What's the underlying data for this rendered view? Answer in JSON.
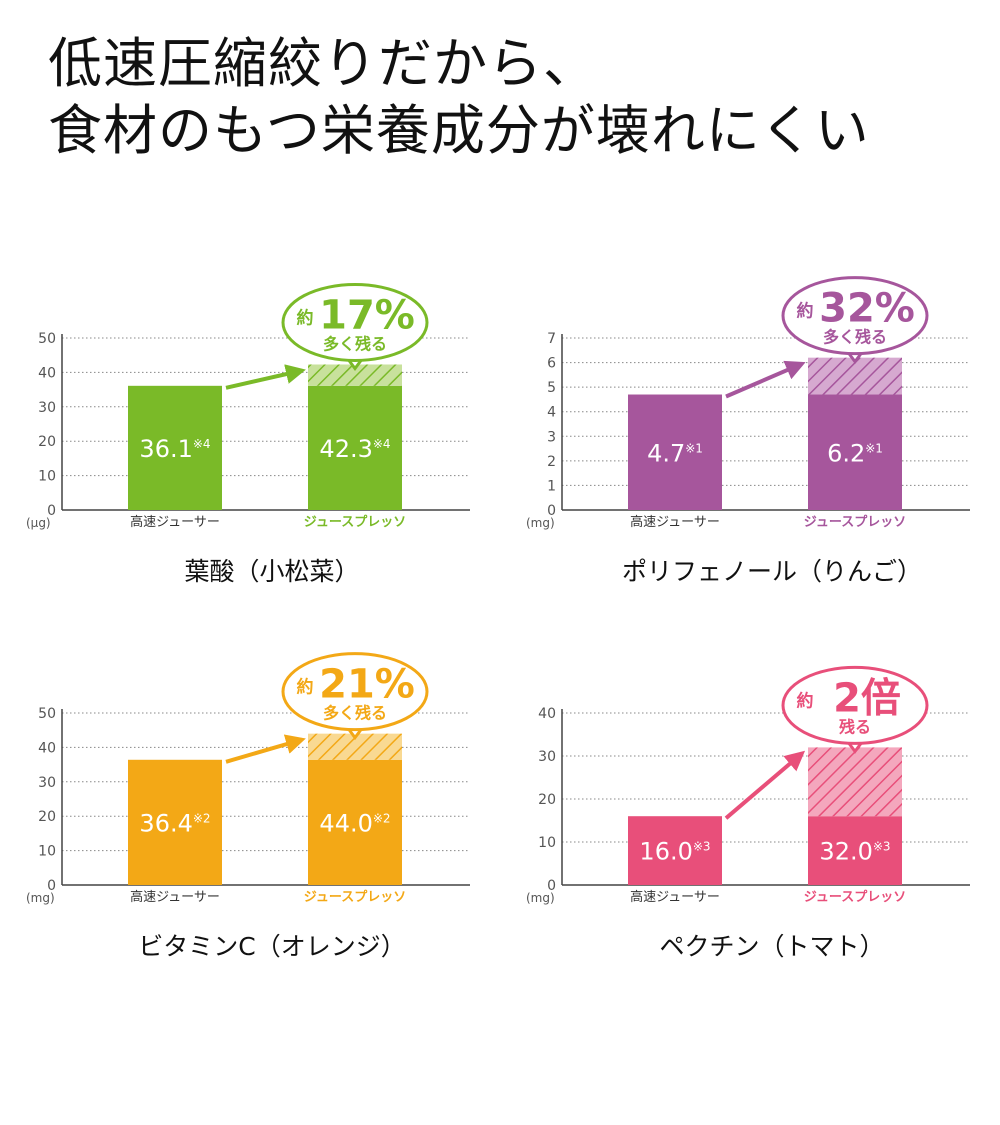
{
  "headline": {
    "line1": "低速圧縮絞りだから、",
    "line2": "食材のもつ栄養成分が壊れにくい"
  },
  "chart_data": [
    {
      "type": "bar",
      "title": "葉酸（小松菜）",
      "unit": "(μg)",
      "ylim": [
        0,
        50
      ],
      "yticks": [
        0,
        10,
        20,
        30,
        40,
        50
      ],
      "grid": true,
      "categories": [
        "高速ジューサー",
        "ジュースプレッソ"
      ],
      "values": [
        36.1,
        42.3
      ],
      "value_labels": [
        "36.1",
        "42.3"
      ],
      "notes": [
        "※4",
        "※4"
      ],
      "callout": {
        "prefix": "約",
        "value": "17%",
        "text": "多く残る"
      },
      "color": "#7aba28",
      "light_color": "#c8e19c"
    },
    {
      "type": "bar",
      "title": "ポリフェノール（りんご）",
      "unit": "(mg)",
      "ylim": [
        0,
        7
      ],
      "yticks": [
        0,
        1,
        2,
        3,
        4,
        5,
        6,
        7
      ],
      "grid": true,
      "categories": [
        "高速ジューサー",
        "ジュースプレッソ"
      ],
      "values": [
        4.7,
        6.2
      ],
      "value_labels": [
        "4.7",
        "6.2"
      ],
      "notes": [
        "※1",
        "※1"
      ],
      "callout": {
        "prefix": "約",
        "value": "32%",
        "text": "多く残る"
      },
      "color": "#a6569c",
      "light_color": "#d6a9d0"
    },
    {
      "type": "bar",
      "title": "ビタミンC（オレンジ）",
      "unit": "(mg)",
      "ylim": [
        0,
        50
      ],
      "yticks": [
        0,
        10,
        20,
        30,
        40,
        50
      ],
      "grid": true,
      "categories": [
        "高速ジューサー",
        "ジュースプレッソ"
      ],
      "values": [
        36.4,
        44.0
      ],
      "value_labels": [
        "36.4",
        "44.0"
      ],
      "notes": [
        "※2",
        "※2"
      ],
      "callout": {
        "prefix": "約",
        "value": "21%",
        "text": "多く残る"
      },
      "color": "#f3a816",
      "light_color": "#f9d992"
    },
    {
      "type": "bar",
      "title": "ペクチン（トマト）",
      "unit": "(mg)",
      "ylim": [
        0,
        40
      ],
      "yticks": [
        0,
        10,
        20,
        30,
        40
      ],
      "grid": true,
      "categories": [
        "高速ジューサー",
        "ジュースプレッソ"
      ],
      "values": [
        16.0,
        32.0
      ],
      "value_labels": [
        "16.0",
        "32.0"
      ],
      "notes": [
        "※3",
        "※3"
      ],
      "callout": {
        "prefix": "約",
        "value": "2倍",
        "text": "残る"
      },
      "color": "#e84f7a",
      "light_color": "#f4a7bd"
    }
  ]
}
